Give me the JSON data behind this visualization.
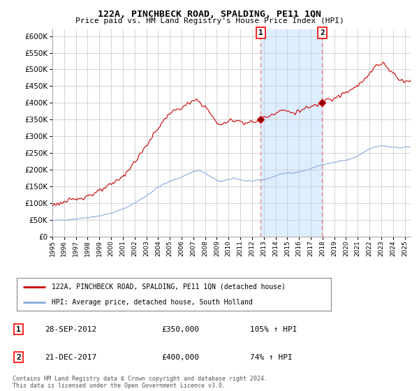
{
  "title": "122A, PINCHBECK ROAD, SPALDING, PE11 1QN",
  "subtitle": "Price paid vs. HM Land Registry's House Price Index (HPI)",
  "property_label": "122A, PINCHBECK ROAD, SPALDING, PE11 1QN (detached house)",
  "hpi_label": "HPI: Average price, detached house, South Holland",
  "sale1_date": "28-SEP-2012",
  "sale1_price": 350000,
  "sale1_pct": "105%",
  "sale2_date": "21-DEC-2017",
  "sale2_price": 400000,
  "sale2_pct": "74%",
  "footnote": "Contains HM Land Registry data © Crown copyright and database right 2024.\nThis data is licensed under the Open Government Licence v3.0.",
  "property_color": "#cc0000",
  "hpi_color": "#88aadd",
  "sale_line_color": "#ee8888",
  "background_color": "#ffffff",
  "highlight_color": "#ddeeff",
  "ylim": [
    0,
    620000
  ],
  "yticks": [
    0,
    50000,
    100000,
    150000,
    200000,
    250000,
    300000,
    350000,
    400000,
    450000,
    500000,
    550000,
    600000
  ],
  "xlim_start": 1995.0,
  "xlim_end": 2025.5,
  "sale1_x": 2012.747,
  "sale2_x": 2017.97
}
